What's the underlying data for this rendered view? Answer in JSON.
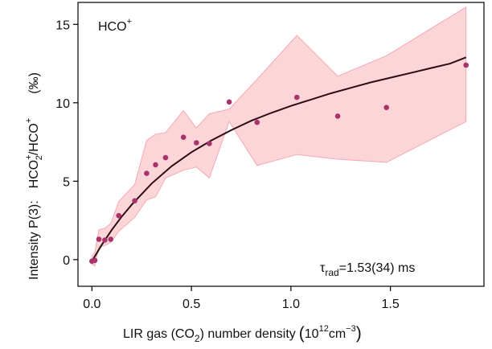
{
  "chart_data": {
    "type": "scatter",
    "annotation_topleft": {
      "text": "HCO",
      "sup": "+"
    },
    "annotation_tau": {
      "symbol": "τ",
      "sub": "rad",
      "value": "=1.53(34) ms"
    },
    "xlabel": {
      "pre": "LIR gas (CO",
      "sub": "2",
      "post": ") number density",
      "unit_open": "(",
      "unit_base": "10",
      "unit_exp": "12",
      "unit_mid": "cm",
      "unit_exp2": "−3",
      "unit_close": ")"
    },
    "ylabel": {
      "prefix": "Intensity P(3):",
      "num": "HCO",
      "num_sup": "+",
      "num_sub": "2",
      "slash": "/",
      "den": "HCO",
      "den_sup": "+",
      "unit": "(‰)"
    },
    "xlim": [
      -0.07,
      1.97
    ],
    "ylim": [
      -1.7,
      16.4
    ],
    "xticks": [
      0.0,
      0.5,
      1.0,
      1.5
    ],
    "xtick_labels": [
      "0.0",
      "0.5",
      "1.0",
      "1.5"
    ],
    "yticks": [
      0,
      5,
      10,
      15
    ],
    "ytick_labels": [
      "0",
      "5",
      "10",
      "15"
    ],
    "grid": false,
    "colors": {
      "points": "#a8336a",
      "band_fill": "#fcd5d9",
      "band_edge": "#f3a9b3",
      "fit": "#2b0d12",
      "axis": "#000000"
    },
    "series": [
      {
        "type": "scatter",
        "x": [
          0.0,
          0.015,
          0.035,
          0.065,
          0.095,
          0.135,
          0.215,
          0.275,
          0.32,
          0.37,
          0.46,
          0.525,
          0.59,
          0.69,
          0.83,
          1.03,
          1.235,
          1.48,
          1.88
        ],
        "y": [
          -0.1,
          -0.05,
          1.3,
          1.25,
          1.3,
          2.8,
          3.75,
          5.5,
          6.05,
          6.5,
          7.8,
          7.45,
          7.4,
          10.05,
          8.75,
          10.35,
          9.15,
          9.7,
          12.4
        ]
      }
    ],
    "band": {
      "x": [
        0.0,
        0.015,
        0.035,
        0.065,
        0.095,
        0.135,
        0.215,
        0.275,
        0.32,
        0.37,
        0.46,
        0.525,
        0.59,
        0.69,
        0.83,
        1.03,
        1.235,
        1.48,
        1.88
      ],
      "upper": [
        0.2,
        0.5,
        1.9,
        2.0,
        2.3,
        3.7,
        4.8,
        7.6,
        8.0,
        8.1,
        9.5,
        8.4,
        9.3,
        9.6,
        11.5,
        14.3,
        11.7,
        13.0,
        16.1
      ],
      "lower": [
        -0.3,
        -0.4,
        0.8,
        0.9,
        1.1,
        1.8,
        2.7,
        3.8,
        4.0,
        5.2,
        5.7,
        5.9,
        5.2,
        8.8,
        6.0,
        6.7,
        6.4,
        6.2,
        8.8
      ]
    },
    "fit": {
      "type": "line",
      "x": [
        0.0,
        0.05,
        0.1,
        0.15,
        0.2,
        0.3,
        0.4,
        0.5,
        0.6,
        0.7,
        0.8,
        0.9,
        1.0,
        1.1,
        1.2,
        1.3,
        1.4,
        1.5,
        1.6,
        1.7,
        1.8,
        1.88
      ],
      "y": [
        -0.1,
        0.95,
        1.9,
        2.75,
        3.5,
        4.85,
        5.95,
        6.85,
        7.6,
        8.25,
        8.85,
        9.35,
        9.8,
        10.2,
        10.6,
        10.95,
        11.3,
        11.6,
        11.9,
        12.2,
        12.5,
        12.9
      ]
    }
  }
}
